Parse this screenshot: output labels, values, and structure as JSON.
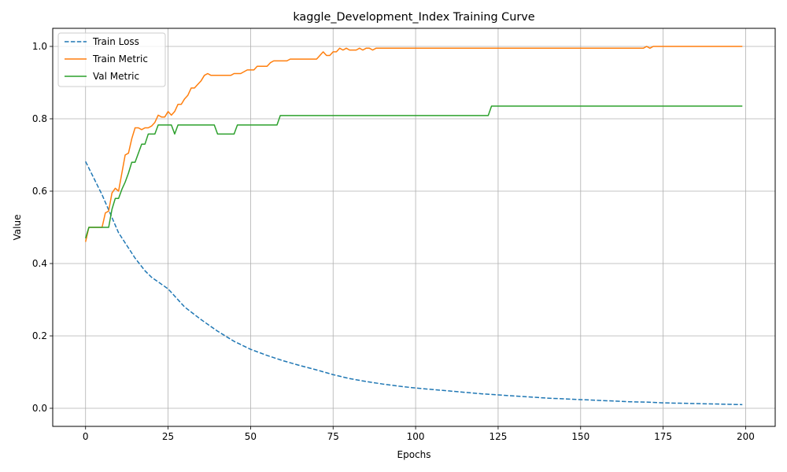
{
  "chart_data": {
    "type": "line",
    "title": "kaggle_Development_Index Training Curve",
    "xlabel": "Epochs",
    "ylabel": "Value",
    "xlim": [
      -9.95,
      208.95
    ],
    "ylim": [
      -0.05,
      1.05
    ],
    "x_ticks": [
      0,
      25,
      50,
      75,
      100,
      125,
      150,
      175,
      200
    ],
    "y_ticks": [
      0.0,
      0.2,
      0.4,
      0.6,
      0.8,
      1.0
    ],
    "x_tick_labels": [
      "0",
      "25",
      "50",
      "75",
      "100",
      "125",
      "150",
      "175",
      "200"
    ],
    "y_tick_labels": [
      "0.0",
      "0.2",
      "0.4",
      "0.6",
      "0.8",
      "1.0"
    ],
    "grid": true,
    "legend_position": "upper-left",
    "series": [
      {
        "name": "Train Loss",
        "color": "#1f77b4",
        "style": "dashed",
        "points": [
          [
            0,
            0.682
          ],
          [
            5,
            0.59
          ],
          [
            10,
            0.485
          ],
          [
            15,
            0.415
          ],
          [
            18,
            0.38
          ],
          [
            20,
            0.362
          ],
          [
            25,
            0.33
          ],
          [
            30,
            0.28
          ],
          [
            35,
            0.245
          ],
          [
            40,
            0.213
          ],
          [
            45,
            0.185
          ],
          [
            50,
            0.163
          ],
          [
            55,
            0.146
          ],
          [
            60,
            0.131
          ],
          [
            65,
            0.118
          ],
          [
            70,
            0.106
          ],
          [
            75,
            0.093
          ],
          [
            80,
            0.082
          ],
          [
            85,
            0.074
          ],
          [
            90,
            0.067
          ],
          [
            95,
            0.061
          ],
          [
            100,
            0.056
          ],
          [
            105,
            0.052
          ],
          [
            110,
            0.048
          ],
          [
            115,
            0.044
          ],
          [
            120,
            0.04
          ],
          [
            125,
            0.037
          ],
          [
            130,
            0.034
          ],
          [
            135,
            0.031
          ],
          [
            140,
            0.028
          ],
          [
            145,
            0.026
          ],
          [
            150,
            0.024
          ],
          [
            155,
            0.022
          ],
          [
            160,
            0.02
          ],
          [
            165,
            0.018
          ],
          [
            170,
            0.017
          ],
          [
            175,
            0.015
          ],
          [
            180,
            0.014
          ],
          [
            185,
            0.013
          ],
          [
            190,
            0.012
          ],
          [
            195,
            0.011
          ],
          [
            199,
            0.01
          ]
        ]
      },
      {
        "name": "Train Metric",
        "color": "#ff7f0e",
        "style": "solid",
        "points": [
          [
            0,
            0.46
          ],
          [
            1,
            0.5
          ],
          [
            2,
            0.5
          ],
          [
            3,
            0.5
          ],
          [
            4,
            0.5
          ],
          [
            5,
            0.5
          ],
          [
            6,
            0.54
          ],
          [
            7,
            0.545
          ],
          [
            8,
            0.595
          ],
          [
            9,
            0.608
          ],
          [
            10,
            0.6
          ],
          [
            11,
            0.65
          ],
          [
            12,
            0.7
          ],
          [
            13,
            0.705
          ],
          [
            14,
            0.745
          ],
          [
            15,
            0.775
          ],
          [
            16,
            0.775
          ],
          [
            17,
            0.77
          ],
          [
            18,
            0.775
          ],
          [
            19,
            0.775
          ],
          [
            20,
            0.78
          ],
          [
            21,
            0.79
          ],
          [
            22,
            0.81
          ],
          [
            23,
            0.805
          ],
          [
            24,
            0.805
          ],
          [
            25,
            0.82
          ],
          [
            26,
            0.81
          ],
          [
            27,
            0.82
          ],
          [
            28,
            0.84
          ],
          [
            29,
            0.84
          ],
          [
            30,
            0.855
          ],
          [
            31,
            0.865
          ],
          [
            32,
            0.885
          ],
          [
            33,
            0.885
          ],
          [
            34,
            0.895
          ],
          [
            35,
            0.905
          ],
          [
            36,
            0.92
          ],
          [
            37,
            0.925
          ],
          [
            38,
            0.92
          ],
          [
            40,
            0.92
          ],
          [
            44,
            0.92
          ],
          [
            45,
            0.925
          ],
          [
            47,
            0.925
          ],
          [
            49,
            0.935
          ],
          [
            51,
            0.935
          ],
          [
            52,
            0.945
          ],
          [
            55,
            0.945
          ],
          [
            56,
            0.955
          ],
          [
            57,
            0.96
          ],
          [
            61,
            0.96
          ],
          [
            62,
            0.965
          ],
          [
            70,
            0.965
          ],
          [
            71,
            0.975
          ],
          [
            72,
            0.985
          ],
          [
            73,
            0.975
          ],
          [
            74,
            0.975
          ],
          [
            75,
            0.985
          ],
          [
            76,
            0.985
          ],
          [
            77,
            0.995
          ],
          [
            78,
            0.99
          ],
          [
            79,
            0.995
          ],
          [
            80,
            0.99
          ],
          [
            82,
            0.99
          ],
          [
            83,
            0.995
          ],
          [
            84,
            0.99
          ],
          [
            85,
            0.995
          ],
          [
            86,
            0.995
          ],
          [
            87,
            0.99
          ],
          [
            88,
            0.995
          ],
          [
            168,
            0.995
          ],
          [
            169,
            0.995
          ],
          [
            170,
            1.0
          ],
          [
            171,
            0.995
          ],
          [
            172,
            1.0
          ],
          [
            199,
            1.0
          ]
        ]
      },
      {
        "name": "Val Metric",
        "color": "#2ca02c",
        "style": "solid",
        "points": [
          [
            0,
            0.47
          ],
          [
            1,
            0.5
          ],
          [
            7,
            0.5
          ],
          [
            8,
            0.55
          ],
          [
            9,
            0.58
          ],
          [
            10,
            0.58
          ],
          [
            11,
            0.605
          ],
          [
            12,
            0.625
          ],
          [
            13,
            0.65
          ],
          [
            14,
            0.68
          ],
          [
            15,
            0.68
          ],
          [
            16,
            0.705
          ],
          [
            17,
            0.73
          ],
          [
            18,
            0.73
          ],
          [
            19,
            0.758
          ],
          [
            21,
            0.758
          ],
          [
            22,
            0.783
          ],
          [
            26,
            0.783
          ],
          [
            27,
            0.758
          ],
          [
            28,
            0.783
          ],
          [
            39,
            0.783
          ],
          [
            40,
            0.758
          ],
          [
            45,
            0.758
          ],
          [
            46,
            0.783
          ],
          [
            58,
            0.783
          ],
          [
            59,
            0.809
          ],
          [
            122,
            0.809
          ],
          [
            123,
            0.835
          ],
          [
            199,
            0.835
          ]
        ]
      }
    ]
  }
}
